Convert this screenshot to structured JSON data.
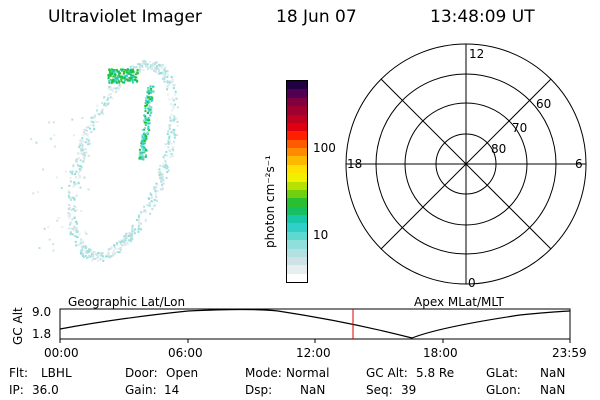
{
  "header": {
    "instrument": "Ultraviolet Imager",
    "date": "18 Jun 07",
    "time": "13:48:09 UT"
  },
  "colorbar": {
    "unit_label": "photon cm⁻²s⁻¹",
    "ticks": [
      "100",
      "10"
    ],
    "colors": [
      "#ffffff",
      "#e6eef0",
      "#cfe3e6",
      "#b3e0e0",
      "#8fe0dc",
      "#5fd8d0",
      "#2fd0c8",
      "#17c7a8",
      "#16c060",
      "#28c030",
      "#70d010",
      "#b8e000",
      "#f0f000",
      "#ffe000",
      "#ffb800",
      "#ff8c00",
      "#ff5a00",
      "#ff2000",
      "#e00010",
      "#c00020",
      "#a00030",
      "#800040",
      "#500050",
      "#200040"
    ]
  },
  "polar": {
    "mlt_labels": [
      "12",
      "18",
      "6",
      "0"
    ],
    "lat_labels": [
      "60",
      "70",
      "80"
    ]
  },
  "timeline": {
    "left_label": "Geographic Lat/Lon",
    "right_label": "Apex MLat/MLT",
    "y_title": "GC Alt",
    "y_top": "9.0",
    "y_bottom": "1.8",
    "x_ticks": [
      "00:00",
      "06:00",
      "12:00",
      "18:00",
      "23:59"
    ],
    "current_time_color": "#e00000"
  },
  "info": {
    "row1": [
      {
        "key": "Flt:",
        "value": "LBHL"
      },
      {
        "key": "Door:",
        "value": "Open"
      },
      {
        "key": "Mode:",
        "value": "Normal"
      },
      {
        "key": "GC Alt:",
        "value": "5.8 Re"
      },
      {
        "key": "GLat:",
        "value": "NaN"
      }
    ],
    "row2": [
      {
        "key": "IP:",
        "value": "36.0"
      },
      {
        "key": "Gain:",
        "value": "14"
      },
      {
        "key": "Dsp:",
        "value": "NaN"
      },
      {
        "key": "Seq:",
        "value": "39"
      },
      {
        "key": "GLon:",
        "value": "NaN"
      }
    ]
  }
}
